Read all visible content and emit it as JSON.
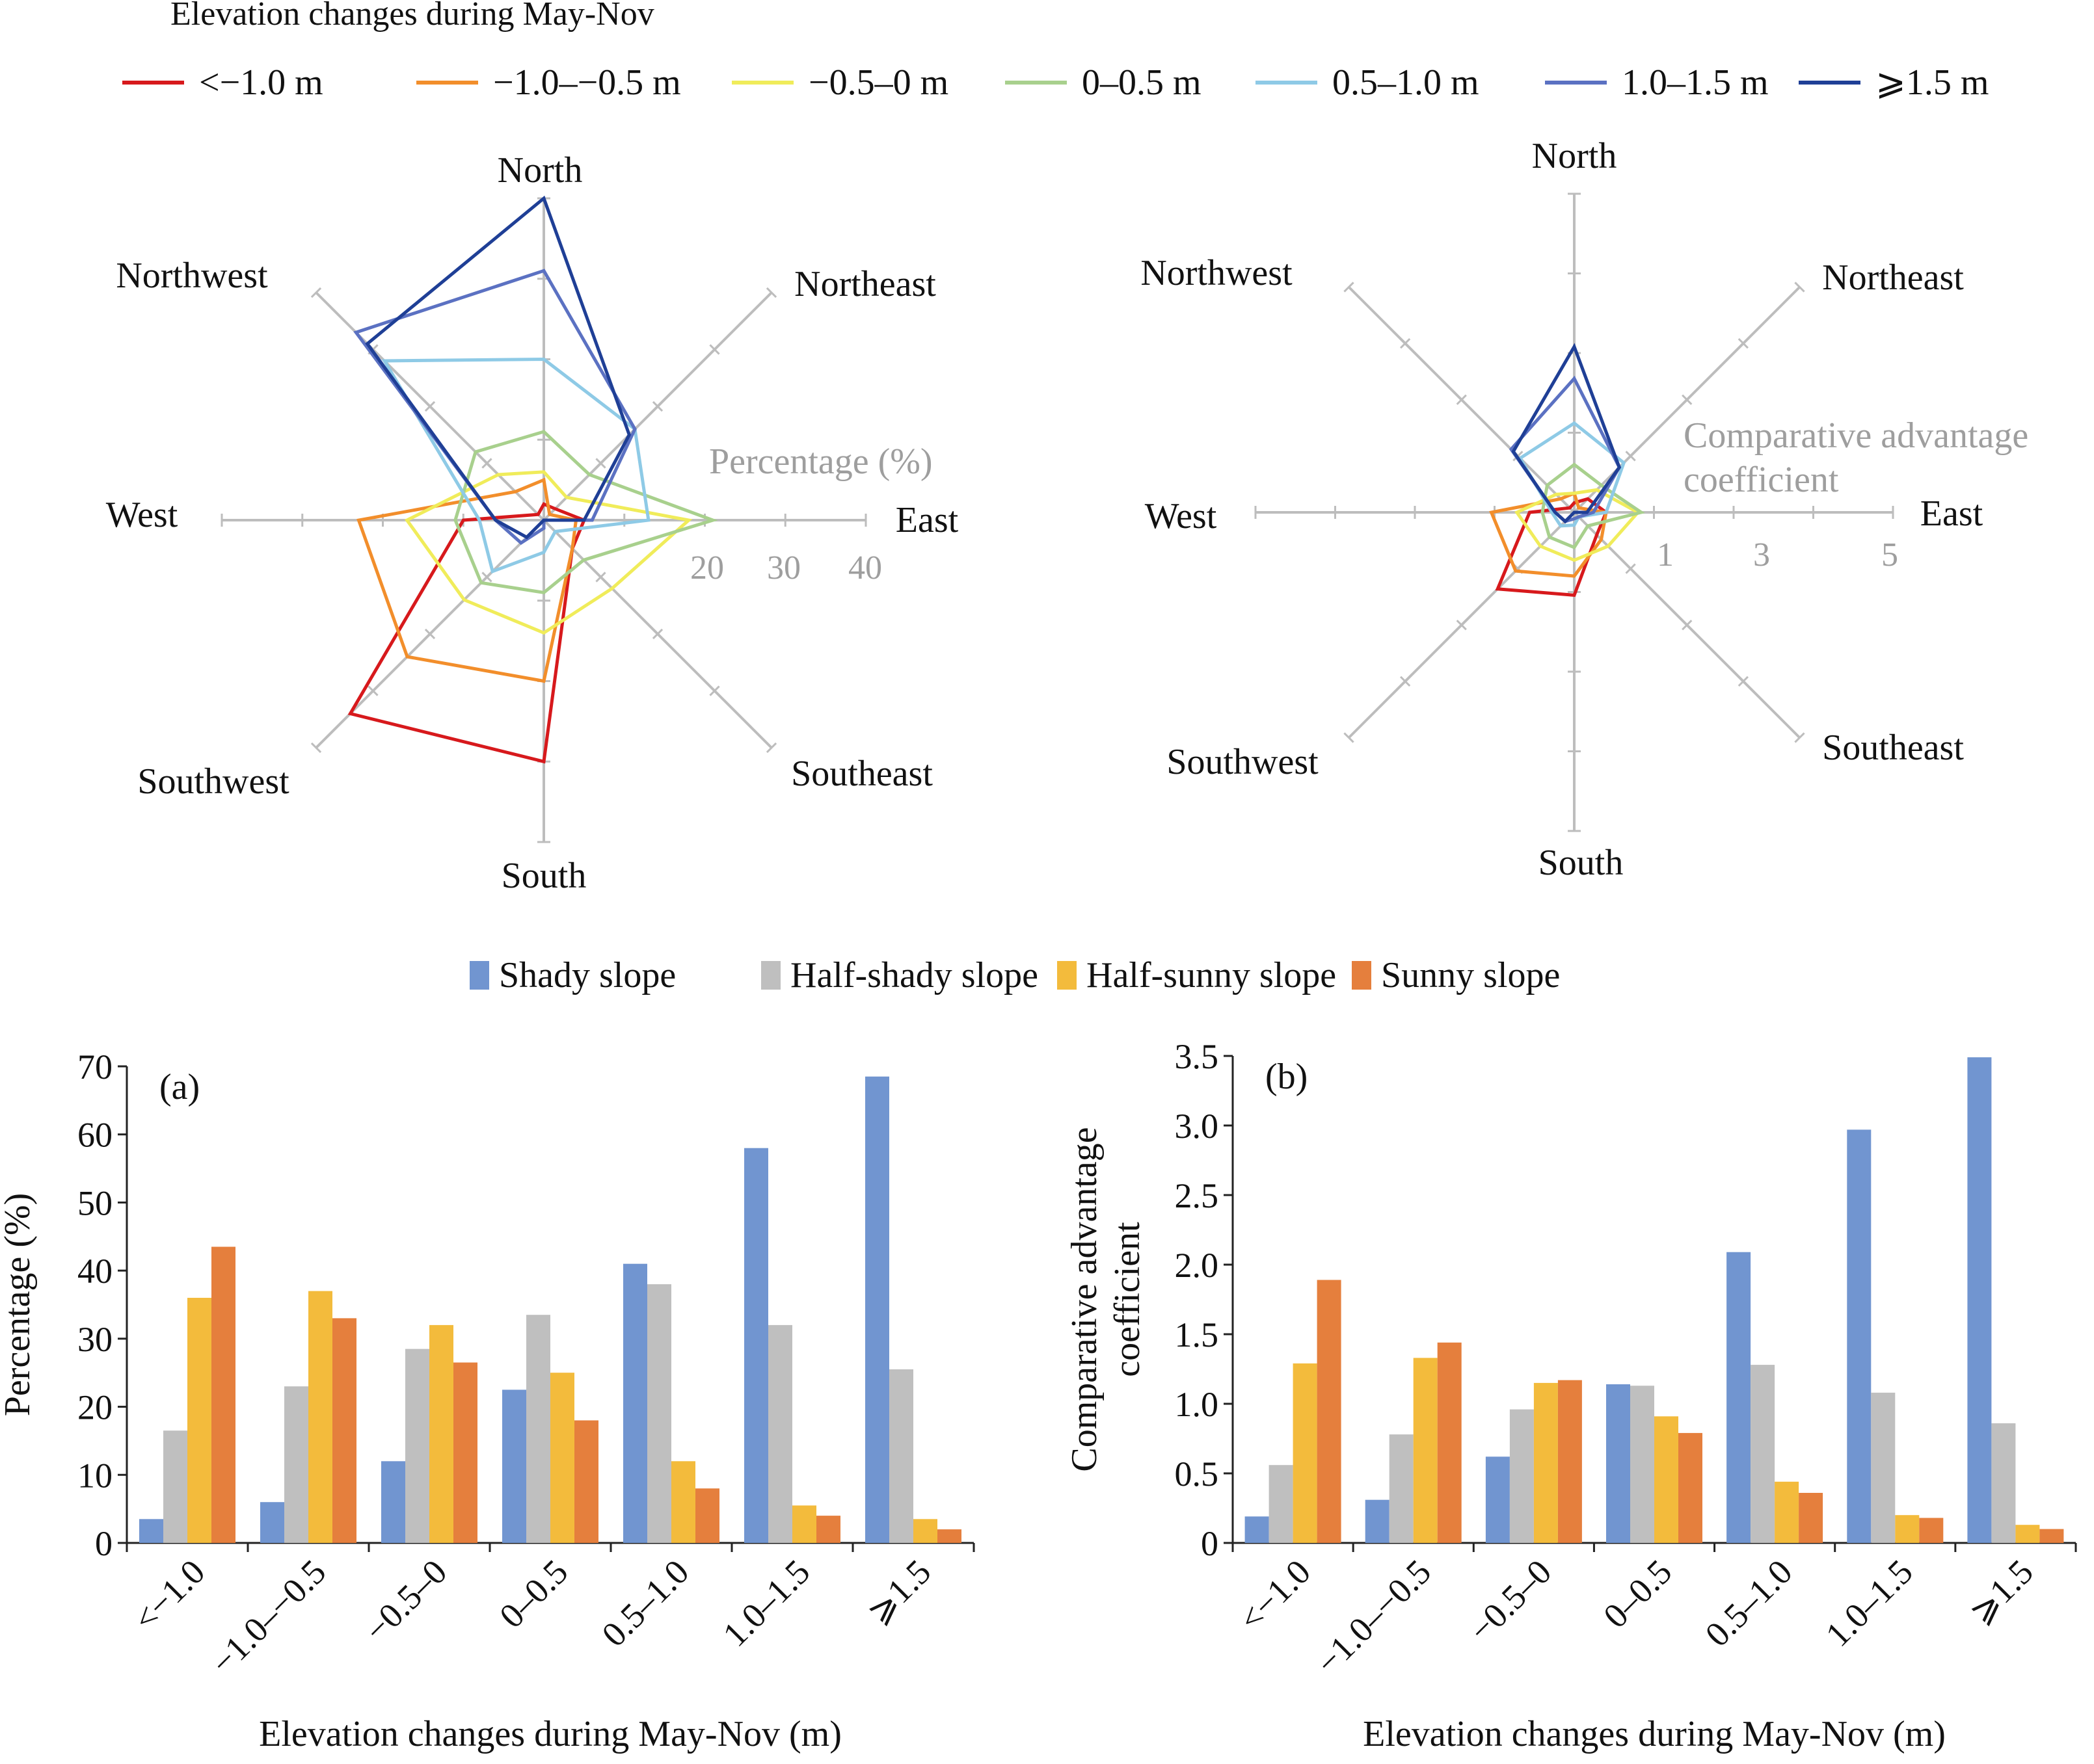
{
  "radar_legend": {
    "title": "Elevation changes during May-Nov",
    "items": [
      {
        "label": "<−1.0 m",
        "color": "#d7191c"
      },
      {
        "label": "−1.0–−0.5 m",
        "color": "#f28e2b"
      },
      {
        "label": "−0.5–0 m",
        "color": "#f0ec5a"
      },
      {
        "label": "0–0.5 m",
        "color": "#a8d08d"
      },
      {
        "label": "0.5–1.0 m",
        "color": "#8ecae6"
      },
      {
        "label": "1.0–1.5 m",
        "color": "#5b71c2"
      },
      {
        "label": "⩾1.5 m",
        "color": "#1f3f96"
      }
    ]
  },
  "bar_legend": {
    "items": [
      {
        "label": "Shady slope",
        "color": "#7195d0"
      },
      {
        "label": "Half-shady slope",
        "color": "#bfbfbf"
      },
      {
        "label": "Half-sunny slope",
        "color": "#f3bb3c"
      },
      {
        "label": "Sunny slope",
        "color": "#e57f3d"
      }
    ]
  },
  "chart_data": [
    {
      "type": "radar",
      "directions": [
        "North",
        "Northeast",
        "East",
        "Southeast",
        "South",
        "Southwest",
        "West",
        "Northwest"
      ],
      "axis_title": "Percentage (%)",
      "tick_labels": [
        "20",
        "30",
        "40"
      ],
      "rmax": 40,
      "series": [
        {
          "name": "<−1.0 m",
          "values": [
            2,
            2,
            5,
            5,
            30,
            34,
            10,
            1
          ]
        },
        {
          "name": "−1.0–−0.5 m",
          "values": [
            5,
            1,
            4,
            5,
            20,
            24,
            23,
            5
          ]
        },
        {
          "name": "−0.5–0 m",
          "values": [
            6,
            4,
            18,
            12,
            14,
            14,
            17,
            8
          ]
        },
        {
          "name": "0–0.5 m",
          "values": [
            11,
            8,
            21,
            7,
            9,
            11,
            11,
            12
          ]
        },
        {
          "name": "0.5–1.0 m",
          "values": [
            20,
            16,
            13,
            2,
            4,
            9,
            8,
            28
          ]
        },
        {
          "name": "1.0–1.5 m",
          "values": [
            31,
            16,
            6,
            0,
            1,
            4,
            6,
            33
          ]
        },
        {
          "name": "⩾1.5 m",
          "values": [
            40,
            15,
            5,
            0,
            0,
            3,
            6,
            31
          ]
        }
      ]
    },
    {
      "type": "radar",
      "directions": [
        "North",
        "Northeast",
        "East",
        "Southeast",
        "South",
        "Southwest",
        "West",
        "Northwest"
      ],
      "axis_title": "Comparative advantage coefficient",
      "tick_labels": [
        "1",
        "3",
        "5"
      ],
      "rmax": 5,
      "series": [
        {
          "name": "<−1.0 m",
          "values": [
            0.15,
            0.3,
            0.5,
            0.5,
            1.3,
            1.7,
            0.7,
            0.1
          ]
        },
        {
          "name": "−1.0–−0.5 m",
          "values": [
            0.3,
            0.1,
            0.5,
            0.6,
            1.0,
            1.3,
            1.3,
            0.3
          ]
        },
        {
          "name": "−0.5–0 m",
          "values": [
            0.3,
            0.5,
            1.0,
            0.75,
            0.75,
            0.75,
            0.9,
            0.4
          ]
        },
        {
          "name": "0–0.5 m",
          "values": [
            0.75,
            0.6,
            1.05,
            0.3,
            0.55,
            0.55,
            0.5,
            0.6
          ]
        },
        {
          "name": "0.5–1.0 m",
          "values": [
            1.4,
            1.1,
            0.5,
            0.1,
            0.2,
            0.3,
            0.35,
            1.2
          ]
        },
        {
          "name": "1.0–1.5 m",
          "values": [
            2.1,
            1.0,
            0.3,
            0.1,
            0.1,
            0.2,
            0.3,
            1.4
          ]
        },
        {
          "name": "⩾1.5 m",
          "values": [
            2.6,
            1.0,
            0.2,
            0.0,
            0.0,
            0.2,
            0.3,
            1.35
          ]
        }
      ]
    },
    {
      "type": "bar",
      "panel_label": "(a)",
      "categories": [
        "<−1.0",
        "−1.0–−0.5",
        "−0.5–0",
        "0–0.5",
        "0.5–1.0",
        "1.0–1.5",
        "⩾1.5"
      ],
      "series": [
        {
          "name": "Shady slope",
          "values": [
            3.5,
            6,
            12,
            22.5,
            41,
            58,
            68.5
          ]
        },
        {
          "name": "Half-shady slope",
          "values": [
            16.5,
            23,
            28.5,
            33.5,
            38,
            32,
            25.5
          ]
        },
        {
          "name": "Half-sunny slope",
          "values": [
            36,
            37,
            32,
            25,
            12,
            5.5,
            3.5
          ]
        },
        {
          "name": "Sunny slope",
          "values": [
            43.5,
            33,
            26.5,
            18,
            8,
            4,
            2
          ]
        }
      ],
      "xlabel": "Elevation changes during May-Nov (m)",
      "ylabel": "Percentage (%)",
      "ylim": [
        0,
        70
      ],
      "yticks": [
        "0",
        "10",
        "20",
        "30",
        "40",
        "50",
        "60",
        "70"
      ]
    },
    {
      "type": "bar",
      "panel_label": "(b)",
      "categories": [
        "<−1.0",
        "−1.0–−0.5",
        "−0.5–0",
        "0–0.5",
        "0.5–1.0",
        "1.0–1.5",
        "⩾1.5"
      ],
      "series": [
        {
          "name": "Shady slope",
          "values": [
            0.19,
            0.31,
            0.62,
            1.14,
            2.09,
            2.97,
            3.49
          ]
        },
        {
          "name": "Half-shady slope",
          "values": [
            0.56,
            0.78,
            0.96,
            1.13,
            1.28,
            1.08,
            0.86
          ]
        },
        {
          "name": "Half-sunny slope",
          "values": [
            1.29,
            1.33,
            1.15,
            0.91,
            0.44,
            0.2,
            0.13
          ]
        },
        {
          "name": "Sunny slope",
          "values": [
            1.89,
            1.44,
            1.17,
            0.79,
            0.36,
            0.18,
            0.1
          ]
        }
      ],
      "xlabel": "Elevation changes during May-Nov (m)",
      "ylabel_lines": [
        "Comparative advantage",
        "coefficient"
      ],
      "ylim": [
        0,
        3.5
      ],
      "yticks": [
        "0",
        "0.5",
        "1.0",
        "1.5",
        "2.0",
        "2.5",
        "3.0",
        "3.5"
      ]
    }
  ]
}
